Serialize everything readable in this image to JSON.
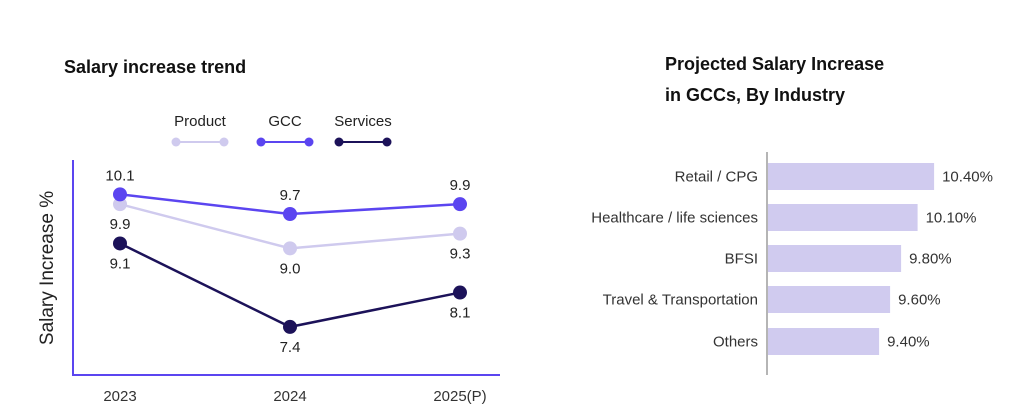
{
  "chart_data": [
    {
      "type": "line",
      "title": "Salary increase trend",
      "xlabel": "",
      "ylabel": "Salary Increase %",
      "categories": [
        "2023",
        "2024",
        "2025(P)"
      ],
      "legend_position": "top-center",
      "grid": false,
      "ylim": [
        6.4,
        10.8
      ],
      "series": [
        {
          "name": "Product",
          "color": "#cfcaee",
          "values": [
            9.9,
            9.0,
            9.3
          ],
          "value_labels": [
            "9.9",
            "9.0",
            "9.3"
          ],
          "label_pos": [
            "below",
            "below",
            "below"
          ]
        },
        {
          "name": "GCC",
          "color": "#5b45f0",
          "values": [
            10.1,
            9.7,
            9.9
          ],
          "value_labels": [
            "10.1",
            "9.7",
            "9.9"
          ],
          "label_pos": [
            "above",
            "above",
            "above"
          ]
        },
        {
          "name": "Services",
          "color": "#1c1259",
          "values": [
            9.1,
            7.4,
            8.1
          ],
          "value_labels": [
            "9.1",
            "7.4",
            "8.1"
          ],
          "label_pos": [
            "below",
            "below",
            "below"
          ]
        }
      ]
    },
    {
      "type": "bar",
      "orientation": "horizontal",
      "title": "Projected Salary Increase in GCCs, By Industry",
      "title_lines": [
        "Projected Salary Increase",
        "in GCCs, By Industry"
      ],
      "xlabel": "",
      "ylabel": "",
      "grid": false,
      "bar_color": "#d0cbef",
      "categories": [
        "Retail / CPG",
        "Healthcare / life sciences",
        "BFSI",
        "Travel & Transportation",
        "Others"
      ],
      "values": [
        10.4,
        10.1,
        9.8,
        9.6,
        9.4
      ],
      "value_labels": [
        "10.40%",
        "10.10%",
        "9.80%",
        "9.60%",
        "9.40%"
      ],
      "xlim": [
        7.38,
        12
      ]
    }
  ]
}
